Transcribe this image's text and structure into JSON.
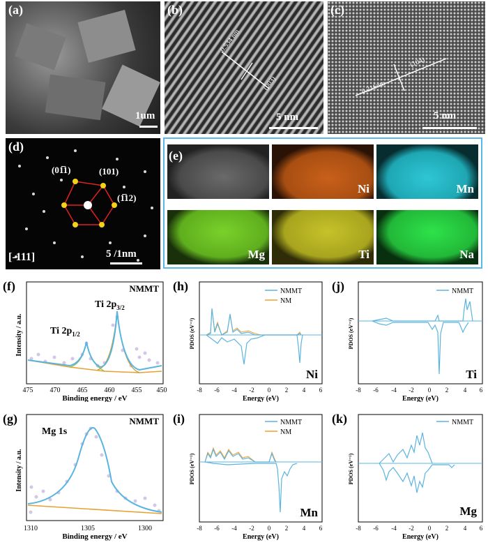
{
  "panels": {
    "a": {
      "label": "(a)",
      "scale": "1um"
    },
    "b": {
      "label": "(b)",
      "spacing": "0.534 nm",
      "plane": "(003)",
      "scale": "5 nm"
    },
    "c": {
      "label": "(c)",
      "spacing": "0.216nm",
      "plane": "(104)",
      "scale": "5 nm"
    },
    "d": {
      "label": "(d)",
      "zone": "[-111]",
      "scale": "5 /1nm",
      "spots": [
        "(01̅1)",
        "(101)",
        "(1̅12)"
      ]
    },
    "e": {
      "label": "(e)",
      "elements": [
        "",
        "Ni",
        "Mn",
        "Mg",
        "Ti",
        "Na"
      ],
      "colors": {
        "Ni": "#c8601a",
        "Mn": "#2fc6d4",
        "Mg": "#7ad12a",
        "Ti": "#c6c22a",
        "Na": "#2ee24a"
      },
      "frame_color": "#5bb6ea"
    }
  },
  "xps": {
    "f": {
      "label": "(f)",
      "title": "NMMT",
      "ylabel": "Intensity / a.u.",
      "xlabel": "Binding energy / eV",
      "peak1": "Ti 2p",
      "peak1_sub": "1/2",
      "peak2": "Ti 2p",
      "peak2_sub": "3/2",
      "xticks": [
        "475",
        "470",
        "465",
        "460",
        "455",
        "450"
      ]
    },
    "g": {
      "label": "(g)",
      "title": "NMMT",
      "ylabel": "Intensity / a.u.",
      "xlabel": "Binding energy / eV",
      "peak": "Mg 1s",
      "xticks": [
        "1310",
        "1305",
        "1300"
      ]
    }
  },
  "pdos": {
    "xlabel": "Energy (eV)",
    "ylabel": "PDOS (eV⁻¹)",
    "xticks": [
      "-8",
      "-6",
      "-4",
      "-2",
      "0",
      "2",
      "4",
      "6"
    ],
    "h": {
      "label": "(h)",
      "element": "Ni",
      "legend": [
        "NMMT",
        "NM"
      ]
    },
    "i": {
      "label": "(i)",
      "element": "Mn",
      "legend": [
        "NMMT",
        "NM"
      ]
    },
    "j": {
      "label": "(j)",
      "element": "Ti",
      "legend": [
        "NMMT"
      ]
    },
    "k": {
      "label": "(k)",
      "element": "Mg",
      "legend": [
        "NMMT"
      ]
    }
  },
  "colors": {
    "nmmt": "#5ab4e0",
    "nm": "#f0a030",
    "fit_base": "#e8a030",
    "data_dots": "#c9b8e0"
  }
}
